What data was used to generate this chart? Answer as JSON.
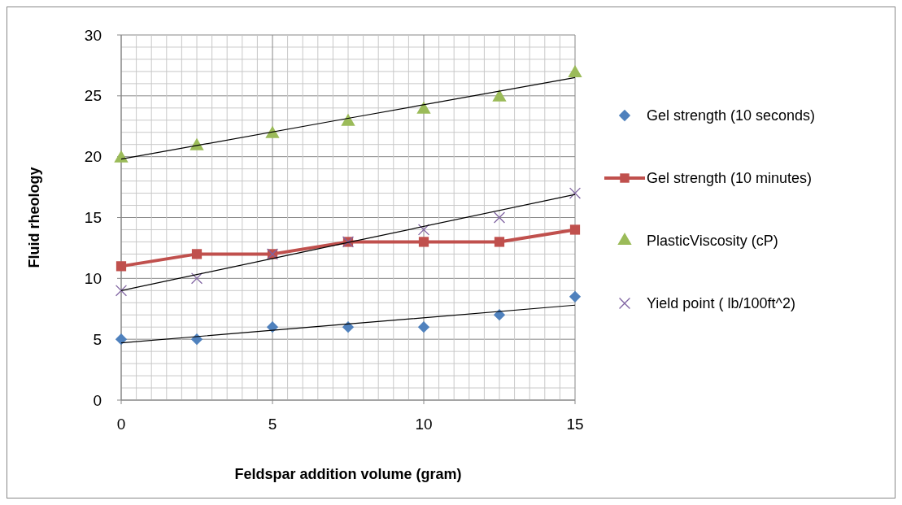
{
  "chart_data": {
    "type": "scatter",
    "xlabel": "Feldspar addition volume (gram)",
    "ylabel": "Fluid rheology",
    "x": [
      0,
      2.5,
      5,
      7.5,
      10,
      12.5,
      15
    ],
    "series": [
      {
        "name": "Gel strength (10 seconds)",
        "color": "#4f81bd",
        "marker": "diamond",
        "values": [
          5,
          5,
          6,
          6,
          6,
          7,
          8.5
        ]
      },
      {
        "name": "Gel strength (10 minutes)",
        "type": "line",
        "color": "#c0504d",
        "marker": "square",
        "values": [
          11,
          12,
          12,
          13,
          13,
          13,
          14
        ]
      },
      {
        "name": "PlasticViscosity (cP)",
        "color": "#9bbb59",
        "marker": "triangle",
        "values": [
          20,
          21,
          22,
          23,
          24,
          25,
          27
        ]
      },
      {
        "name": "Yield point ( lb/100ft^2)",
        "color": "#8064a2",
        "marker": "cross",
        "values": [
          9,
          10,
          12,
          13,
          14,
          15,
          17
        ]
      },
      {
        "type": "line",
        "color": "#000000",
        "marker": "none",
        "x": [
          0,
          7.5,
          15
        ],
        "values": [
          4.7,
          6.25,
          7.8
        ]
      },
      {
        "type": "line",
        "color": "#000000",
        "marker": "none",
        "x": [
          0,
          7.5,
          15
        ],
        "values": [
          19.8,
          23.15,
          26.5
        ]
      },
      {
        "type": "line",
        "color": "#000000",
        "marker": "none",
        "x": [
          0,
          7.5,
          15
        ],
        "values": [
          9,
          12.95,
          16.9
        ]
      }
    ],
    "xlim": [
      0,
      15
    ],
    "ylim": [
      0,
      30
    ],
    "xticks": [
      0,
      {
        "value": 0.5,
        "label": null
      },
      {
        "value": 1,
        "label": null
      },
      {
        "value": 1.5,
        "label": null
      },
      {
        "value": 2,
        "label": null
      },
      {
        "value": 2.5,
        "label": null
      },
      {
        "value": 3,
        "label": null
      },
      {
        "value": 3.5,
        "label": null
      },
      {
        "value": 4,
        "label": null
      },
      {
        "value": 4.5,
        "label": null
      },
      5,
      {
        "value": 5.5,
        "label": null
      },
      {
        "value": 6,
        "label": null
      },
      {
        "value": 6.5,
        "label": null
      },
      {
        "value": 7,
        "label": null
      },
      {
        "value": 7.5,
        "label": null
      },
      {
        "value": 8,
        "label": null
      },
      {
        "value": 8.5,
        "label": null
      },
      {
        "value": 9,
        "label": null
      },
      {
        "value": 9.5,
        "label": null
      },
      10,
      {
        "value": 10.5,
        "label": null
      },
      {
        "value": 11,
        "label": null
      },
      {
        "value": 11.5,
        "label": null
      },
      {
        "value": 12,
        "label": null
      },
      {
        "value": 12.5,
        "label": null
      },
      {
        "value": 13,
        "label": null
      },
      {
        "value": 13.5,
        "label": null
      },
      {
        "value": 14,
        "label": null
      },
      {
        "value": 14.5,
        "label": null
      },
      15
    ],
    "yticks": [
      0,
      {
        "value": 1,
        "label": null
      },
      {
        "value": 2,
        "label": null
      },
      {
        "value": 3,
        "label": null
      },
      {
        "value": 4,
        "label": null
      },
      5,
      {
        "value": 6,
        "label": null
      },
      {
        "value": 7,
        "label": null
      },
      {
        "value": 8,
        "label": null
      },
      {
        "value": 9,
        "label": null
      },
      10,
      {
        "value": 11,
        "label": null
      },
      {
        "value": 12,
        "label": null
      },
      {
        "value": 13,
        "label": null
      },
      {
        "value": 14,
        "label": null
      },
      15,
      {
        "value": 16,
        "label": null
      },
      {
        "value": 17,
        "label": null
      },
      {
        "value": 18,
        "label": null
      },
      {
        "value": 19,
        "label": null
      },
      20,
      {
        "value": 21,
        "label": null
      },
      {
        "value": 22,
        "label": null
      },
      {
        "value": 23,
        "label": null
      },
      {
        "value": 24,
        "label": null
      },
      25,
      {
        "value": 26,
        "label": null
      },
      {
        "value": 27,
        "label": null
      },
      {
        "value": 28,
        "label": null
      },
      {
        "value": 29,
        "label": null
      },
      30
    ],
    "grid": true,
    "legend": "right"
  }
}
